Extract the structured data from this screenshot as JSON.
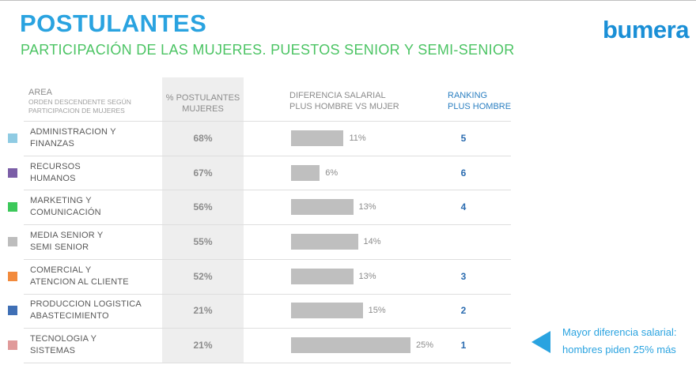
{
  "header": {
    "title": "POSTULANTES",
    "subtitle": "PARTICIPACIÓN DE LAS MUJERES. PUESTOS SENIOR Y SEMI-SENIOR",
    "logo": "bumera"
  },
  "columns": {
    "area": "AREA",
    "area_sub_1": "ORDEN DESCENDENTE SEGÚN",
    "area_sub_2": "PARTICIPACION DE MUJERES",
    "pct_1": "% POSTULANTES",
    "pct_2": "MUJERES",
    "diff_1": "DIFERENCIA SALARIAL",
    "diff_2": "PLUS HOMBRE VS MUJER",
    "rank_1": "RANKING",
    "rank_2": "PLUS HOMBRE"
  },
  "callout": {
    "line1": "Mayor diferencia salarial:",
    "line2": "hombres piden 25% más"
  },
  "chart_data": {
    "type": "table",
    "title": "PARTICIPACIÓN DE LAS MUJERES. PUESTOS SENIOR Y SEMI-SENIOR",
    "rows": [
      {
        "area_1": "ADMINISTRACION Y",
        "area_2": "FINANZAS",
        "color": "#8fcbe3",
        "pct_women": "68%",
        "salary_diff": 11,
        "salary_diff_label": "11%",
        "rank": "5"
      },
      {
        "area_1": "RECURSOS",
        "area_2": "HUMANOS",
        "color": "#7b5ea7",
        "pct_women": "67%",
        "salary_diff": 6,
        "salary_diff_label": "6%",
        "rank": "6"
      },
      {
        "area_1": "MARKETING Y",
        "area_2": "COMUNICACIÓN",
        "color": "#3cc85a",
        "pct_women": "56%",
        "salary_diff": 13,
        "salary_diff_label": "13%",
        "rank": "4"
      },
      {
        "area_1": "MEDIA SENIOR Y",
        "area_2": "SEMI SENIOR",
        "color": "#bdbdbd",
        "pct_women": "55%",
        "salary_diff": 14,
        "salary_diff_label": "14%",
        "rank": ""
      },
      {
        "area_1": "COMERCIAL Y",
        "area_2": "ATENCION AL CLIENTE",
        "color": "#f28a3c",
        "pct_women": "52%",
        "salary_diff": 13,
        "salary_diff_label": "13%",
        "rank": "3"
      },
      {
        "area_1": "PRODUCCION LOGISTICA",
        "area_2": "ABASTECIMIENTO",
        "color": "#3f6fb5",
        "pct_women": "21%",
        "salary_diff": 15,
        "salary_diff_label": "15%",
        "rank": "2"
      },
      {
        "area_1": "TECNOLOGIA Y",
        "area_2": "SISTEMAS",
        "color": "#e09a9a",
        "pct_women": "21%",
        "salary_diff": 25,
        "salary_diff_label": "25%",
        "rank": "1"
      }
    ],
    "bar_max": 25
  }
}
